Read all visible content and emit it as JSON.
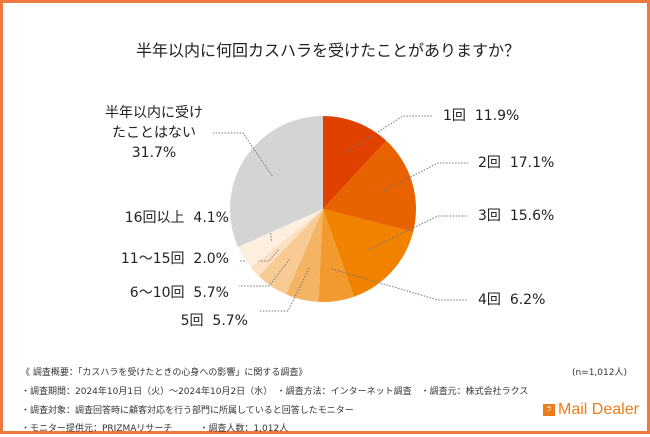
{
  "chart_data": {
    "type": "pie",
    "title": "半年以内に何回カスハラを受けたことがありますか？",
    "slices": [
      {
        "label": "1回",
        "value": 11.9,
        "display": "11.9%",
        "color": "#e04000"
      },
      {
        "label": "2回",
        "value": 17.1,
        "display": "17.1%",
        "color": "#e86200"
      },
      {
        "label": "3回",
        "value": 15.6,
        "display": "15.6%",
        "color": "#f08200"
      },
      {
        "label": "4回",
        "value": 6.2,
        "display": "6.2%",
        "color": "#f29a2e"
      },
      {
        "label": "5回",
        "value": 5.7,
        "display": "5.7%",
        "color": "#f5b463"
      },
      {
        "label": "6〜10回",
        "value": 5.7,
        "display": "5.7%",
        "color": "#f8cb95"
      },
      {
        "label": "11〜15回",
        "value": 2.0,
        "display": "2.0%",
        "color": "#fbe1c2"
      },
      {
        "label": "16回以上",
        "value": 4.1,
        "display": "4.1%",
        "color": "#fdf0e1"
      },
      {
        "label": "半年以内に受けたことはない",
        "value": 31.7,
        "display": "31.7%",
        "color": "#d4d4d4"
      }
    ],
    "sample": "(n=1,012人)"
  },
  "footer": {
    "line1": "《 調査概要：「カスハラを受けたときの心身への影響」に関する調査》",
    "line2": "・調査期間：2024年10月1日（火）〜2024年10月2日（水）　・調査方法：インターネット調査　・調査元：株式会社ラクス",
    "line3": "・調査対象：調査回答時に顧客対応を行う部門に所属していると回答したモニター",
    "line4": "・モニター提供元：PRIZMAリサーチ　　　・調査人数：1,012人",
    "logo": "Mail Dealer"
  },
  "accent": "#ee7a40"
}
